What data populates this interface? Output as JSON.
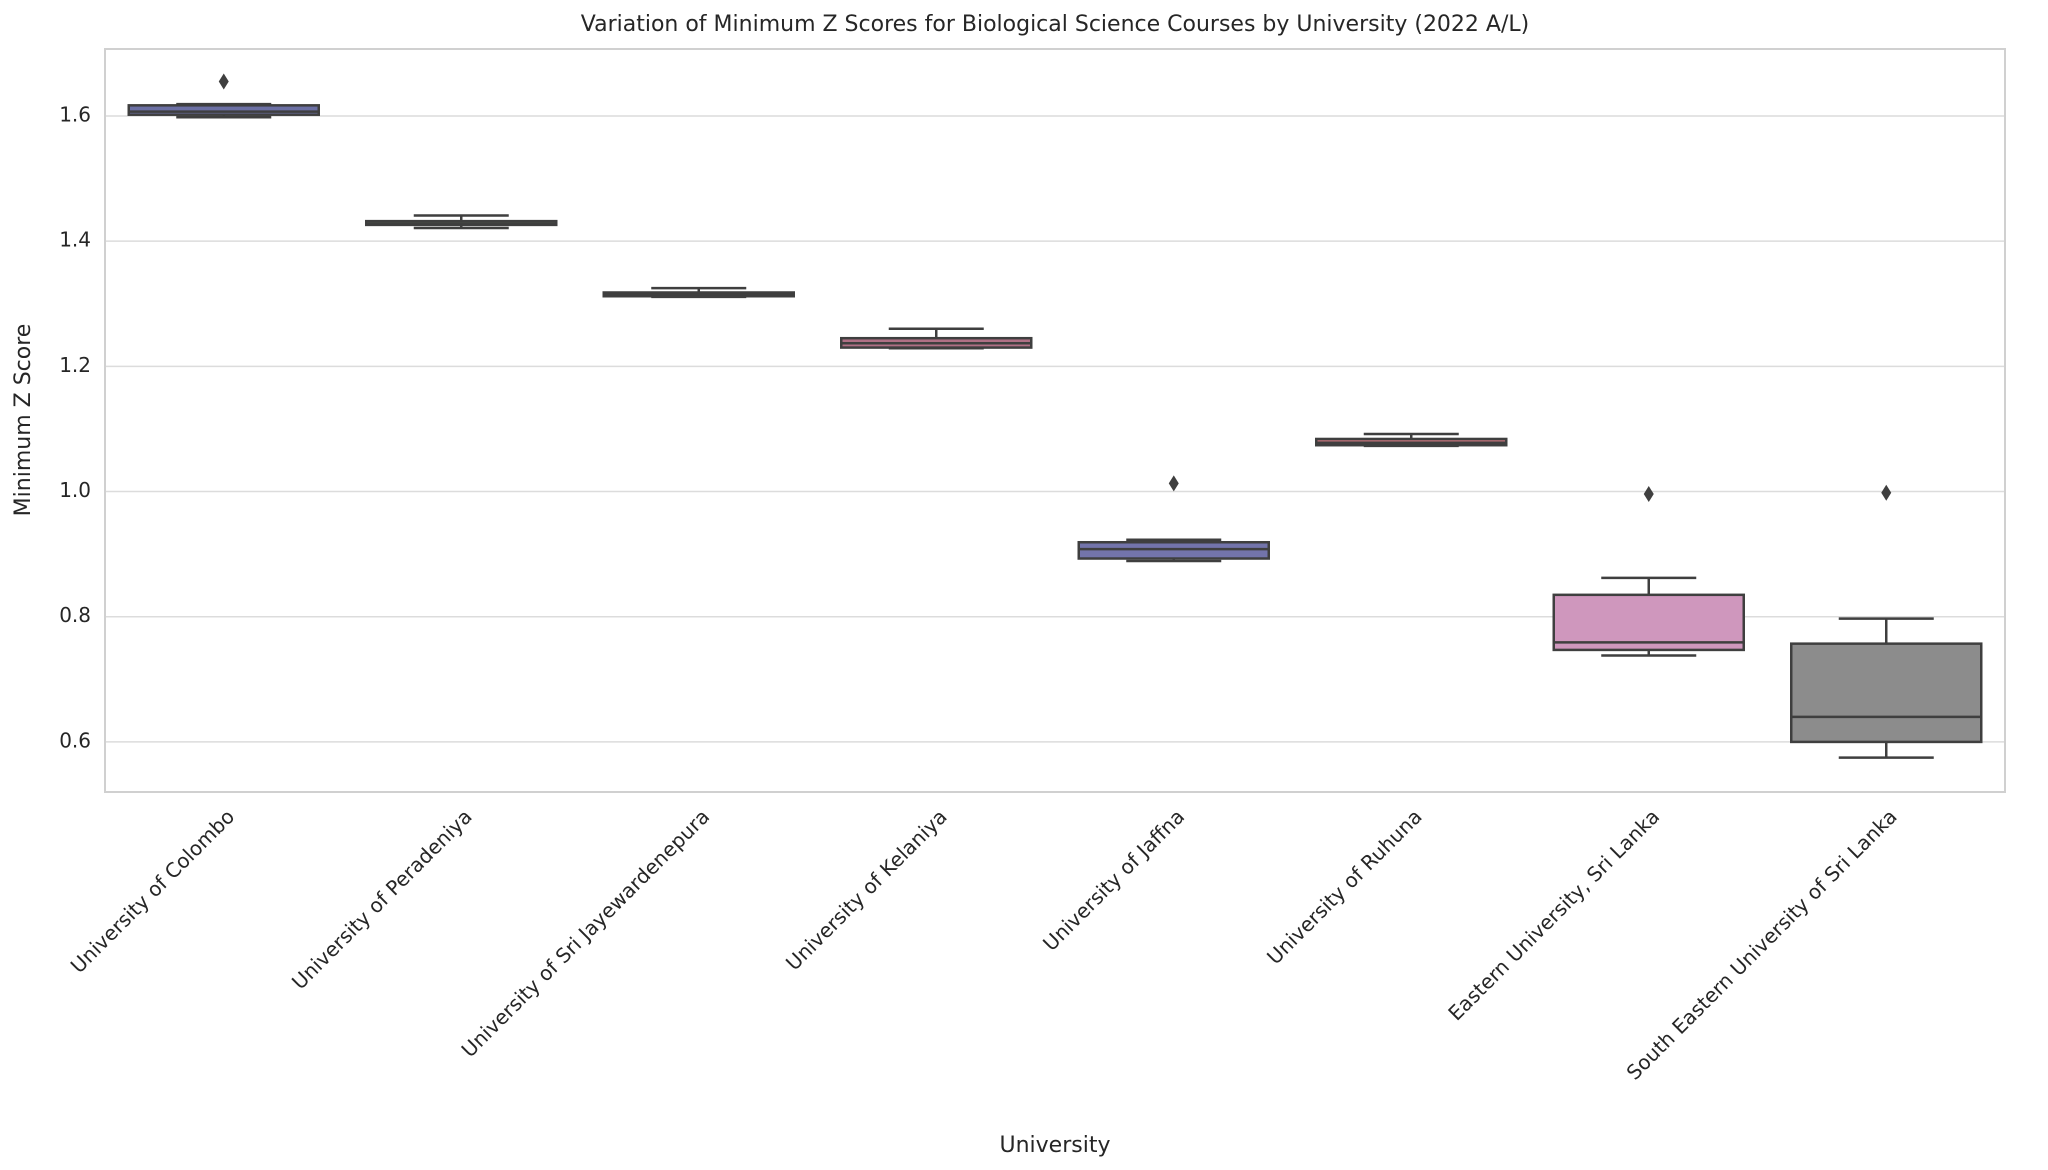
{
  "chart_data": {
    "type": "box",
    "title": "Variation of Minimum Z Scores for Biological Science Courses by University (2022 A/L)",
    "x_label": "University",
    "y_label": "Minimum Z Score",
    "categories": [
      "University of Colombo",
      "University of Peradeniya",
      "University of Sri Jayewardenepura",
      "University of Kelaniya",
      "University of Jaffna",
      "University of Ruhuna",
      "Eastern University, Sri Lanka",
      "South Eastern University of Sri Lanka"
    ],
    "colors": [
      "#6b6fa3",
      "#6f8a63",
      "#b88a5a",
      "#b07085",
      "#7374ab",
      "#c0727a",
      "#cf97bd",
      "#8c8c8c"
    ],
    "stats": [
      {
        "low": 1.598,
        "q1": 1.602,
        "median": 1.607,
        "q3": 1.617,
        "high": 1.619,
        "fliers": [
          1.655
        ]
      },
      {
        "low": 1.421,
        "q1": 1.426,
        "median": 1.428,
        "q3": 1.432,
        "high": 1.441,
        "fliers": []
      },
      {
        "low": 1.311,
        "q1": 1.312,
        "median": 1.315,
        "q3": 1.318,
        "high": 1.325,
        "fliers": []
      },
      {
        "low": 1.229,
        "q1": 1.23,
        "median": 1.237,
        "q3": 1.245,
        "high": 1.26,
        "fliers": []
      },
      {
        "low": 0.889,
        "q1": 0.893,
        "median": 0.908,
        "q3": 0.919,
        "high": 0.923,
        "fliers": [
          1.013
        ]
      },
      {
        "low": 1.073,
        "q1": 1.074,
        "median": 1.078,
        "q3": 1.084,
        "high": 1.092,
        "fliers": []
      },
      {
        "low": 0.738,
        "q1": 0.747,
        "median": 0.759,
        "q3": 0.835,
        "high": 0.862,
        "fliers": [
          0.996
        ]
      },
      {
        "low": 0.575,
        "q1": 0.6,
        "median": 0.64,
        "q3": 0.757,
        "high": 0.797,
        "fliers": [
          0.998
        ]
      }
    ],
    "ylim": [
      0.52,
      1.707
    ],
    "yticks": [
      0.6,
      0.8,
      {
        "value": 1.0,
        "label": "1.0"
      },
      1.2,
      1.4,
      1.6
    ],
    "grid": true
  }
}
